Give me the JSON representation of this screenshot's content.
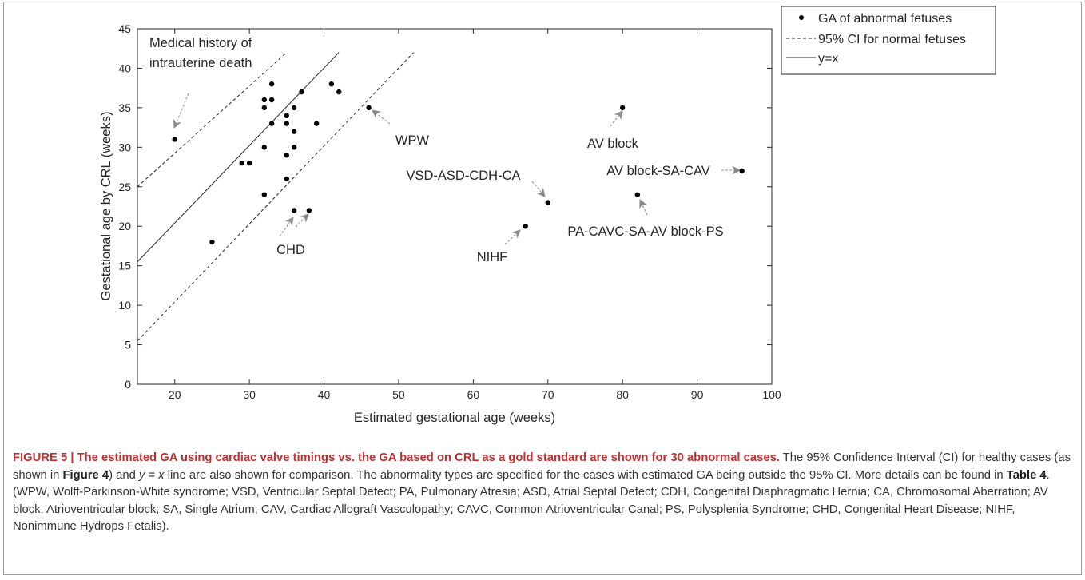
{
  "chart_data": {
    "type": "scatter",
    "xlabel": "Estimated gestational age (weeks)",
    "ylabel": "Gestational age by CRL (weeks)",
    "xlim": [
      15,
      100
    ],
    "ylim": [
      0,
      45
    ],
    "xticks": [
      20,
      30,
      40,
      50,
      60,
      70,
      80,
      90,
      100
    ],
    "yticks": [
      0,
      5,
      10,
      15,
      20,
      25,
      30,
      35,
      40,
      45
    ],
    "grid": false,
    "legend_position": "outside-right",
    "legend": [
      {
        "label": "GA of abnormal fetuses",
        "style": "marker"
      },
      {
        "label": "95% CI for normal fetuses",
        "style": "dashed"
      },
      {
        "label": "y=x",
        "style": "solid"
      }
    ],
    "series": [
      {
        "name": "GA of abnormal fetuses",
        "points": [
          [
            20,
            31
          ],
          [
            25,
            18
          ],
          [
            29,
            28
          ],
          [
            30,
            28
          ],
          [
            32,
            36
          ],
          [
            32,
            35
          ],
          [
            32,
            30
          ],
          [
            32,
            24
          ],
          [
            33,
            38
          ],
          [
            33,
            36
          ],
          [
            33,
            33
          ],
          [
            35,
            34
          ],
          [
            35,
            33
          ],
          [
            35,
            29
          ],
          [
            35,
            26
          ],
          [
            36,
            35
          ],
          [
            36,
            32
          ],
          [
            36,
            30
          ],
          [
            36,
            22
          ],
          [
            37,
            37
          ],
          [
            38,
            22
          ],
          [
            39,
            33
          ],
          [
            41,
            38
          ],
          [
            42,
            37
          ],
          [
            46,
            35
          ],
          [
            67,
            20
          ],
          [
            70,
            23
          ],
          [
            80,
            35
          ],
          [
            82,
            24
          ],
          [
            96,
            27
          ]
        ]
      },
      {
        "name": "y=x",
        "line": [
          [
            15,
            15.5
          ],
          [
            42,
            42
          ]
        ]
      },
      {
        "name": "95% CI for normal fetuses",
        "upper": [
          [
            15,
            25
          ],
          [
            35,
            42
          ]
        ],
        "lower": [
          [
            15,
            5.5
          ],
          [
            52,
            42
          ]
        ]
      }
    ],
    "annotations": [
      {
        "text": "Medical history of intrauterine death",
        "lines": [
          "Medical history of",
          "intrauterine death"
        ],
        "point": [
          20,
          31
        ]
      },
      {
        "text": "CHD",
        "point": [
          36,
          22
        ]
      },
      {
        "text": "WPW",
        "point": [
          46,
          35
        ]
      },
      {
        "text": "VSD-ASD-CDH-CA",
        "point": [
          70,
          23
        ]
      },
      {
        "text": "NIHF",
        "point": [
          67,
          20
        ]
      },
      {
        "text": "AV block",
        "point": [
          80,
          35
        ]
      },
      {
        "text": "AV block-SA-CAV",
        "point": [
          96,
          27
        ]
      },
      {
        "text": "PA-CAVC-SA-AV block-PS",
        "point": [
          82,
          24
        ]
      }
    ],
    "colors": {
      "marker": "#000000",
      "arrow": "#8c8c8c",
      "axis": "#262626"
    }
  },
  "caption": {
    "label": "FIGURE 5 | The estimated GA using cardiac valve timings vs. the GA based on CRL as a gold standard are shown for 30 abnormal cases.",
    "t1": " The 95% Confidence Interval (CI) for healthy cases (as shown in ",
    "fig_ref": "Figure 4",
    "t2": ") and ",
    "eq": "y = x",
    "t3": " line are also shown for comparison. The abnormality types are specified for the cases with estimated GA being outside the 95% CI. More details can be found in ",
    "table_ref": "Table 4",
    "t4": ". (WPW, Wolff-Parkinson-White syndrome; VSD, Ventricular Septal Defect; PA, Pulmonary Atresia; ASD, Atrial Septal Defect; CDH, Congenital Diaphragmatic Hernia; CA, Chromosomal Aberration; AV block, Atrioventricular block; SA, Single Atrium; CAV, Cardiac Allograft Vasculopathy; CAVC, Common Atrioventricular Canal; PS, Polysplenia Syndrome; CHD, Congenital Heart Disease; NIHF, Nonimmune Hydrops Fetalis)."
  }
}
